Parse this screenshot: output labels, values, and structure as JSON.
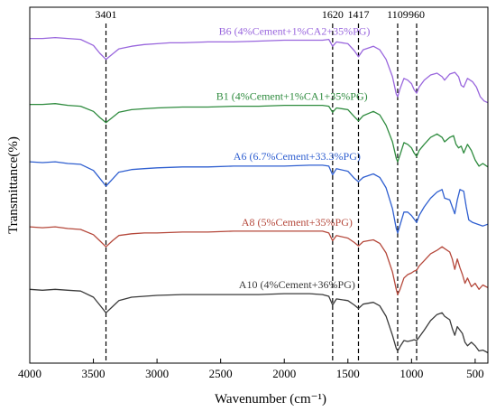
{
  "chart_data": {
    "type": "line",
    "xlabel": "Wavenumber (cm⁻¹)",
    "ylabel": "Transmittance(%)",
    "xlim": [
      4000,
      400
    ],
    "x_reversed": true,
    "x_ticks": [
      "4000",
      "3500",
      "3000",
      "2500",
      "2000",
      "1500",
      "1000",
      "500"
    ],
    "y_ticks_shown": false,
    "grid": false,
    "reference_lines": [
      {
        "label": "3401",
        "x": 3401
      },
      {
        "label": "1620",
        "x": 1620
      },
      {
        "label": "1417",
        "x": 1417
      },
      {
        "label": "1109",
        "x": 1109
      },
      {
        "label": "960",
        "x": 960
      }
    ],
    "series": [
      {
        "name": "B6 (4%Cement+1%CA2+35%PG)",
        "color": "#9966dd",
        "label_x": 1920,
        "points": [
          [
            4000,
            36
          ],
          [
            3900,
            36
          ],
          [
            3800,
            35
          ],
          [
            3700,
            36
          ],
          [
            3600,
            37
          ],
          [
            3500,
            44
          ],
          [
            3450,
            53
          ],
          [
            3401,
            60
          ],
          [
            3350,
            54
          ],
          [
            3300,
            48
          ],
          [
            3200,
            45
          ],
          [
            3100,
            43
          ],
          [
            3000,
            42
          ],
          [
            2900,
            41
          ],
          [
            2800,
            41
          ],
          [
            2600,
            40
          ],
          [
            2400,
            40
          ],
          [
            2200,
            39
          ],
          [
            2000,
            38
          ],
          [
            1800,
            38
          ],
          [
            1700,
            38
          ],
          [
            1650,
            37
          ],
          [
            1620,
            45
          ],
          [
            1590,
            40
          ],
          [
            1500,
            42
          ],
          [
            1450,
            50
          ],
          [
            1417,
            57
          ],
          [
            1380,
            49
          ],
          [
            1300,
            45
          ],
          [
            1250,
            49
          ],
          [
            1200,
            60
          ],
          [
            1150,
            80
          ],
          [
            1120,
            100
          ],
          [
            1109,
            103
          ],
          [
            1090,
            94
          ],
          [
            1060,
            82
          ],
          [
            1030,
            84
          ],
          [
            1000,
            88
          ],
          [
            980,
            95
          ],
          [
            960,
            99
          ],
          [
            940,
            92
          ],
          [
            900,
            84
          ],
          [
            850,
            78
          ],
          [
            800,
            76
          ],
          [
            760,
            80
          ],
          [
            740,
            84
          ],
          [
            700,
            77
          ],
          [
            660,
            75
          ],
          [
            630,
            80
          ],
          [
            610,
            90
          ],
          [
            590,
            92
          ],
          [
            560,
            82
          ],
          [
            520,
            86
          ],
          [
            490,
            92
          ],
          [
            460,
            103
          ],
          [
            430,
            108
          ],
          [
            400,
            110
          ]
        ]
      },
      {
        "name": "B1 (4%Cement+1%CA1+35%PG)",
        "color": "#2e8b3e",
        "label_x": 1940,
        "points": [
          [
            4000,
            112
          ],
          [
            3900,
            112
          ],
          [
            3800,
            111
          ],
          [
            3700,
            113
          ],
          [
            3600,
            114
          ],
          [
            3500,
            120
          ],
          [
            3450,
            127
          ],
          [
            3401,
            133
          ],
          [
            3350,
            127
          ],
          [
            3300,
            121
          ],
          [
            3200,
            118
          ],
          [
            3100,
            117
          ],
          [
            3000,
            116
          ],
          [
            2800,
            115
          ],
          [
            2600,
            115
          ],
          [
            2400,
            114
          ],
          [
            2200,
            114
          ],
          [
            2000,
            113
          ],
          [
            1800,
            113
          ],
          [
            1700,
            113
          ],
          [
            1650,
            114
          ],
          [
            1620,
            121
          ],
          [
            1590,
            116
          ],
          [
            1500,
            118
          ],
          [
            1450,
            126
          ],
          [
            1417,
            131
          ],
          [
            1380,
            125
          ],
          [
            1300,
            120
          ],
          [
            1250,
            124
          ],
          [
            1200,
            136
          ],
          [
            1150,
            155
          ],
          [
            1120,
            174
          ],
          [
            1109,
            178
          ],
          [
            1090,
            170
          ],
          [
            1060,
            156
          ],
          [
            1030,
            158
          ],
          [
            1000,
            162
          ],
          [
            980,
            168
          ],
          [
            960,
            172
          ],
          [
            940,
            165
          ],
          [
            900,
            158
          ],
          [
            850,
            150
          ],
          [
            800,
            146
          ],
          [
            760,
            150
          ],
          [
            740,
            155
          ],
          [
            700,
            150
          ],
          [
            670,
            148
          ],
          [
            650,
            158
          ],
          [
            630,
            162
          ],
          [
            610,
            160
          ],
          [
            590,
            168
          ],
          [
            560,
            158
          ],
          [
            530,
            165
          ],
          [
            500,
            176
          ],
          [
            470,
            183
          ],
          [
            440,
            180
          ],
          [
            400,
            184
          ]
        ]
      },
      {
        "name": "A6 (6.7%Cement+33.3%PG)",
        "color": "#2f5fd0",
        "label_x": 1900,
        "points": [
          [
            4000,
            178
          ],
          [
            3900,
            179
          ],
          [
            3800,
            178
          ],
          [
            3700,
            180
          ],
          [
            3600,
            181
          ],
          [
            3500,
            188
          ],
          [
            3450,
            197
          ],
          [
            3401,
            206
          ],
          [
            3350,
            198
          ],
          [
            3300,
            190
          ],
          [
            3200,
            187
          ],
          [
            3100,
            186
          ],
          [
            3000,
            185
          ],
          [
            2800,
            184
          ],
          [
            2600,
            184
          ],
          [
            2400,
            183
          ],
          [
            2200,
            183
          ],
          [
            2000,
            183
          ],
          [
            1800,
            182
          ],
          [
            1700,
            182
          ],
          [
            1650,
            183
          ],
          [
            1620,
            193
          ],
          [
            1590,
            186
          ],
          [
            1500,
            189
          ],
          [
            1450,
            197
          ],
          [
            1417,
            201
          ],
          [
            1380,
            196
          ],
          [
            1300,
            192
          ],
          [
            1250,
            196
          ],
          [
            1200,
            208
          ],
          [
            1150,
            232
          ],
          [
            1120,
            255
          ],
          [
            1109,
            260
          ],
          [
            1090,
            251
          ],
          [
            1060,
            236
          ],
          [
            1030,
            236
          ],
          [
            1000,
            240
          ],
          [
            980,
            244
          ],
          [
            960,
            248
          ],
          [
            940,
            240
          ],
          [
            900,
            230
          ],
          [
            850,
            220
          ],
          [
            800,
            213
          ],
          [
            760,
            210
          ],
          [
            740,
            220
          ],
          [
            700,
            222
          ],
          [
            680,
            230
          ],
          [
            660,
            238
          ],
          [
            640,
            222
          ],
          [
            620,
            210
          ],
          [
            590,
            212
          ],
          [
            570,
            230
          ],
          [
            550,
            245
          ],
          [
            520,
            248
          ],
          [
            480,
            250
          ],
          [
            440,
            252
          ],
          [
            400,
            250
          ]
        ]
      },
      {
        "name": "A8 (5%Cement+35%PG)",
        "color": "#b5483b",
        "label_x": 1900,
        "points": [
          [
            4000,
            253
          ],
          [
            3900,
            254
          ],
          [
            3800,
            253
          ],
          [
            3700,
            255
          ],
          [
            3600,
            256
          ],
          [
            3500,
            262
          ],
          [
            3450,
            269
          ],
          [
            3401,
            276
          ],
          [
            3350,
            269
          ],
          [
            3300,
            263
          ],
          [
            3200,
            261
          ],
          [
            3100,
            260
          ],
          [
            3000,
            260
          ],
          [
            2800,
            259
          ],
          [
            2600,
            259
          ],
          [
            2400,
            258
          ],
          [
            2200,
            258
          ],
          [
            2000,
            258
          ],
          [
            1800,
            258
          ],
          [
            1700,
            258
          ],
          [
            1650,
            260
          ],
          [
            1620,
            269
          ],
          [
            1590,
            263
          ],
          [
            1500,
            266
          ],
          [
            1450,
            271
          ],
          [
            1417,
            275
          ],
          [
            1380,
            270
          ],
          [
            1300,
            268
          ],
          [
            1250,
            272
          ],
          [
            1200,
            283
          ],
          [
            1150,
            305
          ],
          [
            1120,
            325
          ],
          [
            1109,
            331
          ],
          [
            1090,
            325
          ],
          [
            1060,
            312
          ],
          [
            1030,
            308
          ],
          [
            1000,
            306
          ],
          [
            980,
            304
          ],
          [
            960,
            303
          ],
          [
            940,
            298
          ],
          [
            900,
            292
          ],
          [
            850,
            284
          ],
          [
            800,
            280
          ],
          [
            760,
            276
          ],
          [
            740,
            278
          ],
          [
            700,
            282
          ],
          [
            680,
            290
          ],
          [
            660,
            302
          ],
          [
            640,
            290
          ],
          [
            620,
            300
          ],
          [
            600,
            308
          ],
          [
            580,
            318
          ],
          [
            560,
            312
          ],
          [
            530,
            322
          ],
          [
            500,
            318
          ],
          [
            470,
            325
          ],
          [
            440,
            320
          ],
          [
            400,
            323
          ]
        ]
      },
      {
        "name": "A10 (4%Cement+36%PG)",
        "color": "#3a3a3a",
        "label_x": 1900,
        "points": [
          [
            4000,
            325
          ],
          [
            3900,
            326
          ],
          [
            3800,
            325
          ],
          [
            3700,
            326
          ],
          [
            3600,
            327
          ],
          [
            3500,
            334
          ],
          [
            3450,
            343
          ],
          [
            3401,
            352
          ],
          [
            3350,
            345
          ],
          [
            3300,
            338
          ],
          [
            3200,
            334
          ],
          [
            3100,
            333
          ],
          [
            3000,
            332
          ],
          [
            2800,
            331
          ],
          [
            2600,
            331
          ],
          [
            2400,
            331
          ],
          [
            2200,
            331
          ],
          [
            2000,
            330
          ],
          [
            1800,
            330
          ],
          [
            1700,
            331
          ],
          [
            1650,
            333
          ],
          [
            1620,
            343
          ],
          [
            1590,
            336
          ],
          [
            1500,
            338
          ],
          [
            1450,
            343
          ],
          [
            1417,
            347
          ],
          [
            1380,
            342
          ],
          [
            1300,
            340
          ],
          [
            1250,
            344
          ],
          [
            1200,
            356
          ],
          [
            1150,
            378
          ],
          [
            1120,
            393
          ],
          [
            1109,
            396
          ],
          [
            1090,
            391
          ],
          [
            1060,
            384
          ],
          [
            1030,
            385
          ],
          [
            1000,
            384
          ],
          [
            980,
            383
          ],
          [
            960,
            384
          ],
          [
            940,
            380
          ],
          [
            900,
            372
          ],
          [
            850,
            361
          ],
          [
            800,
            354
          ],
          [
            760,
            352
          ],
          [
            740,
            356
          ],
          [
            700,
            360
          ],
          [
            680,
            370
          ],
          [
            660,
            378
          ],
          [
            640,
            368
          ],
          [
            620,
            372
          ],
          [
            600,
            376
          ],
          [
            580,
            386
          ],
          [
            560,
            390
          ],
          [
            530,
            386
          ],
          [
            500,
            390
          ],
          [
            470,
            396
          ],
          [
            440,
            395
          ],
          [
            400,
            398
          ]
        ]
      }
    ]
  }
}
